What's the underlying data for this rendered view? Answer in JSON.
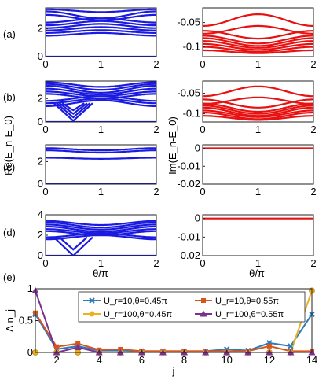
{
  "figure": {
    "xlabel_theta": "θ/π",
    "ylabel_re": "Re(E_n-E_0)",
    "ylabel_im": "Im(E_n-E_0)"
  },
  "panel_labels": [
    "(a)",
    "(b)",
    "(c)",
    "(d)",
    "(e)"
  ],
  "colors": {
    "blue": "#1a1ae0",
    "red": "#e81010"
  },
  "chart_data": [
    {
      "id": "a-left",
      "type": "line",
      "panel": "(a)",
      "xlim": [
        0,
        2
      ],
      "ylim": [
        0,
        3.5
      ],
      "xticks": [
        0,
        1,
        2
      ],
      "yticks": [
        0,
        2
      ],
      "color": "#1a1ae0",
      "bands": [
        {
          "base": 0.0,
          "amp": 0.0,
          "freq": 1
        },
        {
          "base": 1.6,
          "amp": -0.1,
          "freq": 1
        },
        {
          "base": 1.8,
          "amp": -0.1,
          "freq": 1
        },
        {
          "base": 2.0,
          "amp": -0.12,
          "freq": 1
        },
        {
          "base": 2.2,
          "amp": -0.15,
          "freq": 1
        },
        {
          "base": 2.4,
          "amp": -0.15,
          "freq": 1
        },
        {
          "base": 2.6,
          "amp": -0.15,
          "freq": 1
        },
        {
          "base": 2.8,
          "amp": 0.2,
          "freq": 1
        },
        {
          "base": 3.0,
          "amp": 0.25,
          "freq": 1
        },
        {
          "base": 3.3,
          "amp": 0.1,
          "freq": 1
        }
      ]
    },
    {
      "id": "a-right",
      "type": "line",
      "panel": "(a)",
      "xlim": [
        0,
        2
      ],
      "ylim": [
        -0.12,
        -0.02
      ],
      "xticks": [
        0,
        1,
        2
      ],
      "yticks": [
        -0.05,
        -0.1
      ],
      "color": "#e81010",
      "bands": [
        {
          "base": -0.11,
          "amp": 0.003,
          "freq": 1
        },
        {
          "base": -0.105,
          "amp": 0.005,
          "freq": 1
        },
        {
          "base": -0.1,
          "amp": 0.006,
          "freq": 1
        },
        {
          "base": -0.095,
          "amp": 0.007,
          "freq": 1
        },
        {
          "base": -0.09,
          "amp": 0.008,
          "freq": 1
        },
        {
          "base": -0.085,
          "amp": 0.008,
          "freq": 1
        },
        {
          "base": -0.075,
          "amp": 0.008,
          "freq": 1
        },
        {
          "base": -0.065,
          "amp": -0.008,
          "freq": 1
        },
        {
          "base": -0.045,
          "amp": -0.012,
          "freq": 1
        }
      ]
    },
    {
      "id": "b-left",
      "type": "line",
      "panel": "(b)",
      "xlim": [
        0,
        2
      ],
      "ylim": [
        0,
        3.5
      ],
      "xticks": [
        0,
        1,
        2
      ],
      "yticks": [
        0,
        2
      ],
      "color": "#1a1ae0",
      "bands": [
        {
          "base": 0.0,
          "amp": 0.0,
          "freq": 1
        },
        {
          "base": 1.6,
          "amp": -0.25,
          "freq": 1
        },
        {
          "base": 1.8,
          "amp": -0.2,
          "freq": 1
        },
        {
          "base": 2.0,
          "amp": -0.2,
          "freq": 1
        },
        {
          "base": 2.2,
          "amp": 0.2,
          "freq": 1
        },
        {
          "base": 2.4,
          "amp": 0.2,
          "freq": 1
        },
        {
          "base": 2.6,
          "amp": 0.25,
          "freq": 1
        },
        {
          "base": 2.8,
          "amp": 0.3,
          "freq": 1
        },
        {
          "base": 3.0,
          "amp": 0.25,
          "freq": 1
        },
        {
          "base": 3.2,
          "amp": 0.2,
          "freq": 1
        }
      ],
      "dips": [
        {
          "center": 0.5,
          "depth": 1.5,
          "width": 0.35
        },
        {
          "center": 0.5,
          "depth": 1.2,
          "width": 0.3
        },
        {
          "center": 0.5,
          "depth": 0.9,
          "width": 0.25
        },
        {
          "center": 0.5,
          "depth": 0.6,
          "width": 0.2
        }
      ]
    },
    {
      "id": "b-right",
      "type": "line",
      "panel": "(b)",
      "xlim": [
        0,
        2
      ],
      "ylim": [
        -0.12,
        -0.02
      ],
      "xticks": [
        0,
        1,
        2
      ],
      "yticks": [
        -0.05,
        -0.1
      ],
      "color": "#e81010",
      "bands": [
        {
          "base": -0.11,
          "amp": 0.005,
          "freq": 1
        },
        {
          "base": -0.105,
          "amp": 0.008,
          "freq": 1
        },
        {
          "base": -0.1,
          "amp": 0.008,
          "freq": 1
        },
        {
          "base": -0.095,
          "amp": 0.01,
          "freq": 1
        },
        {
          "base": -0.09,
          "amp": 0.01,
          "freq": 1
        },
        {
          "base": -0.085,
          "amp": 0.01,
          "freq": 1
        },
        {
          "base": -0.075,
          "amp": 0.01,
          "freq": 1
        },
        {
          "base": -0.068,
          "amp": -0.008,
          "freq": 1
        },
        {
          "base": -0.045,
          "amp": -0.012,
          "freq": 1
        }
      ]
    },
    {
      "id": "c-left",
      "type": "line",
      "panel": "(c)",
      "xlim": [
        0,
        2
      ],
      "ylim": [
        0,
        3.5
      ],
      "xticks": [
        0,
        1,
        2
      ],
      "yticks": [
        0,
        2
      ],
      "color": "#1a1ae0",
      "bands": [
        {
          "base": 0.0,
          "amp": 0.0,
          "freq": 1
        },
        {
          "base": 2.3,
          "amp": 0.05,
          "freq": 1
        },
        {
          "base": 2.9,
          "amp": 0.1,
          "freq": 1
        },
        {
          "base": 3.1,
          "amp": 0.1,
          "freq": 1
        }
      ]
    },
    {
      "id": "c-right",
      "type": "line",
      "panel": "(c)",
      "xlim": [
        0,
        2
      ],
      "ylim": [
        -0.02,
        0.002
      ],
      "xticks": [
        0,
        1,
        2
      ],
      "yticks": [
        0,
        -0.01,
        -0.02
      ],
      "color": "#e81010",
      "bands": [
        {
          "base": 0.0,
          "amp": 0.0,
          "freq": 1
        }
      ]
    },
    {
      "id": "d-left",
      "type": "line",
      "panel": "(d)",
      "xlim": [
        0,
        2
      ],
      "ylim": [
        0,
        4
      ],
      "xticks": [
        0,
        1,
        2
      ],
      "yticks": [
        0,
        2,
        4
      ],
      "color": "#1a1ae0",
      "bands": [
        {
          "base": 0.0,
          "amp": 0.0,
          "freq": 1
        },
        {
          "base": 1.8,
          "amp": -0.2,
          "freq": 1
        },
        {
          "base": 2.0,
          "amp": -0.2,
          "freq": 1
        },
        {
          "base": 2.2,
          "amp": 0.2,
          "freq": 1
        },
        {
          "base": 2.4,
          "amp": 0.2,
          "freq": 1
        },
        {
          "base": 2.6,
          "amp": 0.25,
          "freq": 1
        },
        {
          "base": 2.8,
          "amp": 0.25,
          "freq": 1
        },
        {
          "base": 3.0,
          "amp": 0.25,
          "freq": 1
        },
        {
          "base": 3.2,
          "amp": 0.2,
          "freq": 1
        }
      ],
      "dips": [
        {
          "center": 0.5,
          "depth": 1.8,
          "width": 0.35
        },
        {
          "center": 0.5,
          "depth": 1.2,
          "width": 0.25
        }
      ]
    },
    {
      "id": "d-right",
      "type": "line",
      "panel": "(d)",
      "xlim": [
        0,
        2
      ],
      "ylim": [
        -0.02,
        0.002
      ],
      "xticks": [
        0,
        1,
        2
      ],
      "yticks": [
        0,
        -0.01,
        -0.02
      ],
      "color": "#e81010",
      "bands": [
        {
          "base": 0.0,
          "amp": 0.0,
          "freq": 1
        }
      ]
    },
    {
      "id": "e",
      "type": "line",
      "panel": "(e)",
      "xlabel": "j",
      "ylabel": "Δ n_j",
      "xlim": [
        1,
        14
      ],
      "ylim": [
        0,
        1
      ],
      "xticks": [
        2,
        4,
        6,
        8,
        10,
        12,
        14
      ],
      "yticks": [
        0,
        0.5,
        1
      ],
      "x": [
        1,
        2,
        3,
        4,
        5,
        6,
        7,
        8,
        9,
        10,
        11,
        12,
        13,
        14
      ],
      "series": [
        {
          "name": "U_r=10,θ=0.45π",
          "color": "#2b7bba",
          "marker": "x",
          "values": [
            0.6,
            0.05,
            0.1,
            0.03,
            0.03,
            0.02,
            0.02,
            0.02,
            0.02,
            0.05,
            0.03,
            0.15,
            0.1,
            0.6
          ]
        },
        {
          "name": "U_r=10,θ=0.55π",
          "color": "#d9541a",
          "marker": "square",
          "values": [
            0.62,
            0.09,
            0.14,
            0.04,
            0.05,
            0.02,
            0.02,
            0.02,
            0.02,
            0.02,
            0.02,
            0.1,
            0.02,
            0.02
          ]
        },
        {
          "name": "U_r=100,θ=0.45π",
          "color": "#edb01f",
          "marker": "circle",
          "values": [
            0.0,
            0.0,
            0.0,
            0.0,
            0.0,
            0.0,
            0.0,
            0.0,
            0.0,
            0.0,
            0.0,
            0.0,
            0.0,
            0.97
          ]
        },
        {
          "name": "U_r=100,θ=0.55π",
          "color": "#7d2f8e",
          "marker": "triangle",
          "values": [
            0.97,
            0.0,
            0.08,
            0.0,
            0.0,
            0.0,
            0.0,
            0.0,
            0.0,
            0.0,
            0.0,
            0.0,
            0.0,
            0.0
          ]
        }
      ]
    }
  ]
}
